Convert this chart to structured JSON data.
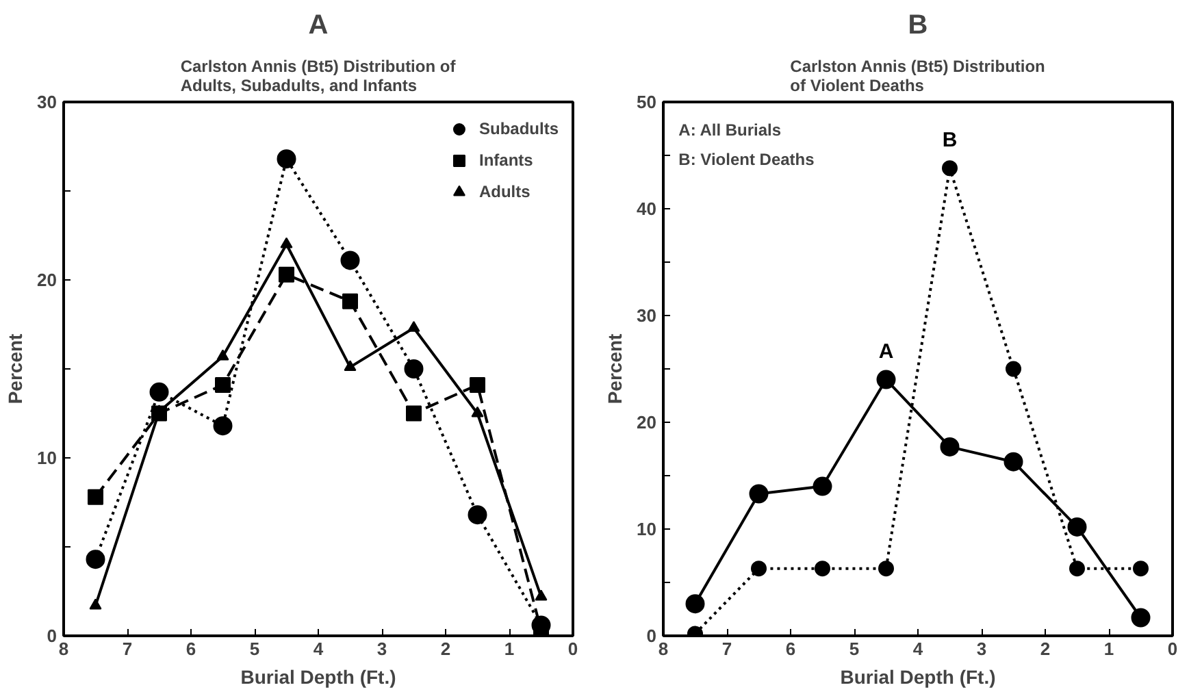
{
  "chart_data": [
    {
      "type": "line",
      "title": "A",
      "subtitle": "Carlston Annis (Bt5) Distribution of\nAdults, Subadults, and Infants",
      "xlabel": "Burial Depth (Ft.)",
      "ylabel": "Percent",
      "x": [
        7.5,
        6.5,
        5.5,
        4.5,
        3.5,
        2.5,
        1.5,
        0.5
      ],
      "series": [
        {
          "name": "Subadults",
          "color": "#000000",
          "marker": "circle",
          "line_style": "dotted",
          "values": [
            4.3,
            13.7,
            11.8,
            26.8,
            21.1,
            15.0,
            6.8,
            0.6
          ]
        },
        {
          "name": "Infants",
          "color": "#000000",
          "marker": "square",
          "line_style": "dashed",
          "values": [
            7.8,
            12.5,
            14.1,
            20.3,
            18.8,
            12.5,
            14.1,
            0.3
          ]
        },
        {
          "name": "Adults",
          "color": "#000000",
          "marker": "triangle",
          "line_style": "solid",
          "values": [
            1.7,
            12.6,
            15.7,
            22.0,
            15.1,
            17.3,
            12.5,
            2.2
          ]
        }
      ],
      "xlim": [
        8,
        0
      ],
      "xticks": [
        8,
        7,
        6,
        5,
        4,
        3,
        2,
        1,
        0
      ],
      "ylim": [
        0,
        30
      ],
      "yticks": [
        0,
        {
          "value": 5,
          "label": null
        },
        10,
        {
          "value": 15,
          "label": null
        },
        20,
        {
          "value": 25,
          "label": null
        },
        30
      ],
      "grid": false,
      "legend": "top right"
    },
    {
      "type": "line",
      "title": "B",
      "subtitle": "Carlston Annis (Bt5) Distribution\nof Violent Deaths",
      "xlabel": "Burial Depth (Ft.)",
      "ylabel": "Percent",
      "x": [
        7.5,
        6.5,
        5.5,
        4.5,
        3.5,
        2.5,
        1.5,
        0.5
      ],
      "series": [
        {
          "name": "A",
          "color": "#000000",
          "marker": "circle",
          "line_style": "solid",
          "values": [
            3.0,
            13.3,
            14.0,
            24.0,
            17.7,
            16.3,
            10.2,
            1.7
          ]
        },
        {
          "name": "B",
          "color": "#000000",
          "marker": "circle",
          "line_style": "dotted",
          "values": [
            0.2,
            6.3,
            6.3,
            6.3,
            43.8,
            25.0,
            6.3,
            6.3
          ]
        }
      ],
      "annotations": [
        "A: All Burials",
        "B: Violent Deaths"
      ],
      "xlim": [
        8,
        0
      ],
      "xticks": [
        8,
        7,
        6,
        5,
        4,
        3,
        2,
        1,
        0
      ],
      "ylim": [
        0,
        50
      ],
      "yticks": [
        0,
        {
          "value": 5,
          "label": null
        },
        10,
        {
          "value": 15,
          "label": null
        },
        20,
        {
          "value": 25,
          "label": null
        },
        30,
        {
          "value": 35,
          "label": null
        },
        40,
        {
          "value": 45,
          "label": null
        },
        50
      ],
      "grid": false,
      "legend": false
    }
  ]
}
